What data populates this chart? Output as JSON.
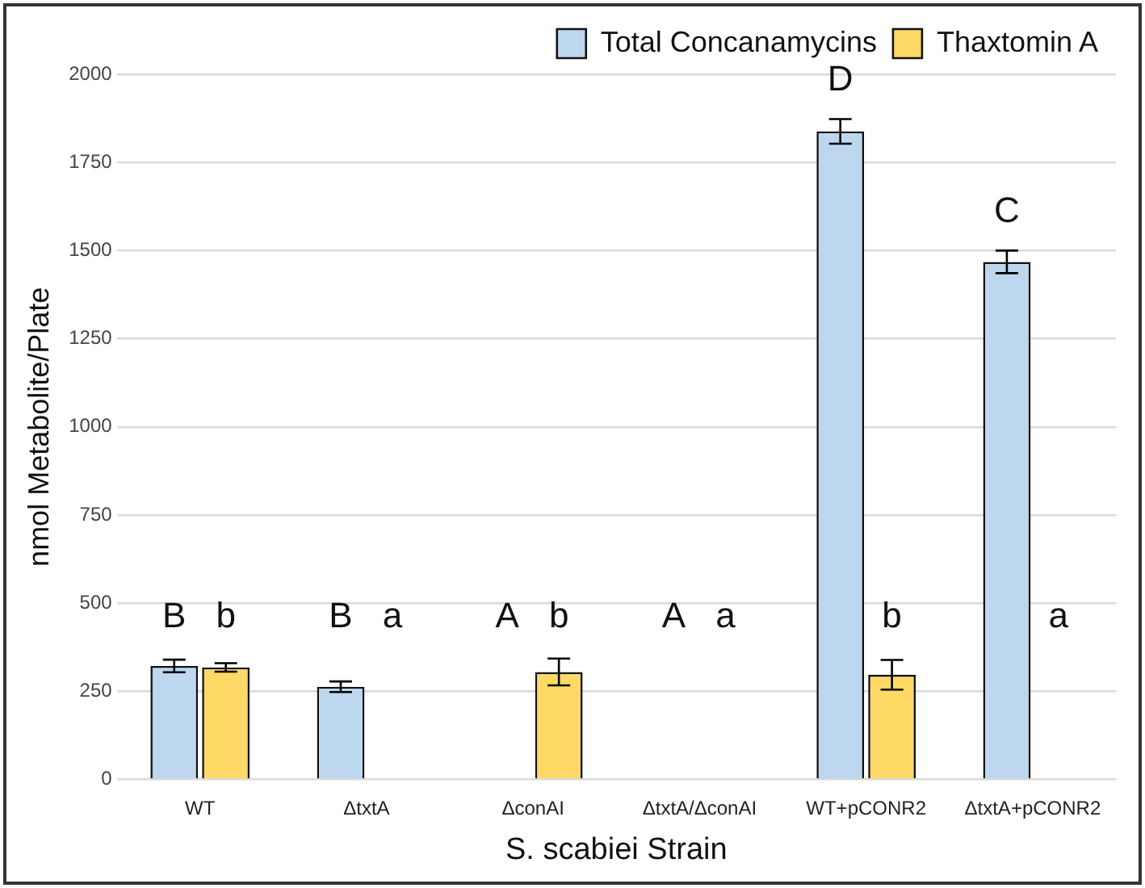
{
  "chart_data": {
    "type": "bar",
    "xlabel": "S. scabiei Strain",
    "ylabel": "nmol Metabolite/Plate",
    "categories": [
      "WT",
      "ΔtxtA",
      "ΔconAI",
      "ΔtxtA/ΔconAI",
      "WT+pCONR2",
      "ΔtxtA+pCONR2"
    ],
    "series": [
      {
        "name": "Total Concanamycins",
        "color": "#bdd7ee",
        "values": [
          322,
          263,
          0,
          0,
          1838,
          1468
        ],
        "errors": [
          18,
          15,
          null,
          null,
          35,
          32
        ]
      },
      {
        "name": "Thaxtomin A",
        "color": "#ffd966",
        "values": [
          318,
          0,
          305,
          0,
          297,
          0
        ],
        "errors": [
          12,
          null,
          38,
          null,
          42,
          null
        ]
      }
    ],
    "ylim": [
      0,
      2000
    ],
    "yticks": [
      0,
      250,
      500,
      750,
      1000,
      1250,
      1500,
      1750,
      2000
    ],
    "grid": "y",
    "legend": "top right",
    "annotations": [
      "B",
      "b",
      "B",
      "a",
      "A",
      "b",
      "A",
      "a",
      "D",
      "b",
      "C",
      "a"
    ]
  }
}
